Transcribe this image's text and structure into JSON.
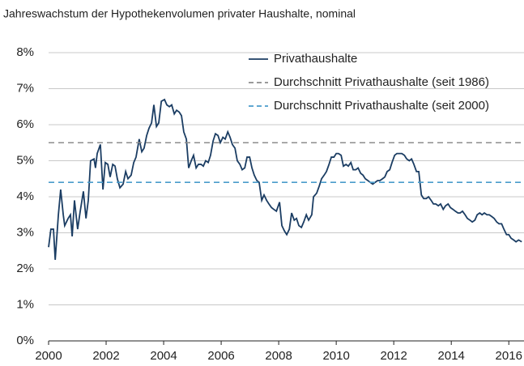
{
  "chart_data": {
    "type": "line",
    "title": "Jahreswachstum der Hypothekenvolumen privater Haushalte, nominal",
    "xlim": [
      2000,
      2016.5
    ],
    "xticks": [
      2000,
      2002,
      2004,
      2006,
      2008,
      2010,
      2012,
      2014,
      2016
    ],
    "ylim": [
      0,
      8
    ],
    "yticks": [
      {
        "value": 0,
        "label": "0%"
      },
      {
        "value": 1,
        "label": "1%"
      },
      {
        "value": 2,
        "label": "2%"
      },
      {
        "value": 3,
        "label": "3%"
      },
      {
        "value": 4,
        "label": "4%"
      },
      {
        "value": 5,
        "label": "5%"
      },
      {
        "value": 6,
        "label": "6%"
      },
      {
        "value": 7,
        "label": "7%"
      },
      {
        "value": 8,
        "label": "8%"
      }
    ],
    "grid": true,
    "legend": "top-right",
    "series": [
      {
        "name": "Privathaushalte",
        "color": "#1b3d63",
        "dash": false,
        "x": [
          2000.0,
          2000.08,
          2000.17,
          2000.23,
          2000.34,
          2000.42,
          2000.51,
          2000.56,
          2000.68,
          2000.76,
          2000.82,
          2000.9,
          2001.01,
          2001.1,
          2001.21,
          2001.3,
          2001.38,
          2001.46,
          2001.58,
          2001.63,
          2001.69,
          2001.8,
          2001.89,
          2001.97,
          2002.06,
          2002.14,
          2002.23,
          2002.31,
          2002.39,
          2002.48,
          2002.59,
          2002.68,
          2002.76,
          2002.87,
          2002.96,
          2003.04,
          2003.15,
          2003.24,
          2003.32,
          2003.41,
          2003.49,
          2003.58,
          2003.66,
          2003.75,
          2003.83,
          2003.92,
          2004.03,
          2004.11,
          2004.2,
          2004.28,
          2004.37,
          2004.45,
          2004.54,
          2004.62,
          2004.7,
          2004.79,
          2004.87,
          2004.96,
          2005.04,
          2005.13,
          2005.21,
          2005.3,
          2005.38,
          2005.46,
          2005.55,
          2005.63,
          2005.72,
          2005.8,
          2005.89,
          2005.97,
          2006.06,
          2006.14,
          2006.23,
          2006.31,
          2006.39,
          2006.48,
          2006.56,
          2006.65,
          2006.73,
          2006.82,
          2006.9,
          2006.99,
          2007.07,
          2007.15,
          2007.24,
          2007.32,
          2007.41,
          2007.49,
          2007.58,
          2007.66,
          2007.75,
          2007.83,
          2007.92,
          2008.03,
          2008.11,
          2008.2,
          2008.28,
          2008.37,
          2008.45,
          2008.54,
          2008.62,
          2008.7,
          2008.79,
          2008.87,
          2008.96,
          2009.04,
          2009.15,
          2009.21,
          2009.32,
          2009.41,
          2009.49,
          2009.58,
          2009.66,
          2009.75,
          2009.83,
          2009.92,
          2010.0,
          2010.08,
          2010.17,
          2010.25,
          2010.34,
          2010.42,
          2010.51,
          2010.59,
          2010.68,
          2010.76,
          2010.85,
          2010.93,
          2011.01,
          2011.1,
          2011.18,
          2011.27,
          2011.35,
          2011.44,
          2011.52,
          2011.61,
          2011.69,
          2011.77,
          2011.86,
          2011.94,
          2012.03,
          2012.11,
          2012.2,
          2012.28,
          2012.37,
          2012.45,
          2012.54,
          2012.62,
          2012.7,
          2012.79,
          2012.87,
          2012.96,
          2013.04,
          2013.13,
          2013.21,
          2013.3,
          2013.38,
          2013.46,
          2013.55,
          2013.63,
          2013.72,
          2013.8,
          2013.89,
          2013.97,
          2014.06,
          2014.14,
          2014.23,
          2014.31,
          2014.39,
          2014.48,
          2014.56,
          2014.65,
          2014.73,
          2014.82,
          2014.9,
          2014.99,
          2015.07,
          2015.15,
          2015.24,
          2015.32,
          2015.41,
          2015.49,
          2015.58,
          2015.66,
          2015.75,
          2015.83,
          2015.92,
          2016.0,
          2016.08,
          2016.17,
          2016.25,
          2016.34,
          2016.45
        ],
        "values": [
          2.6,
          3.1,
          3.1,
          2.25,
          3.5,
          4.2,
          3.5,
          3.2,
          3.4,
          3.5,
          2.9,
          3.9,
          3.1,
          3.6,
          4.15,
          3.4,
          3.9,
          5.0,
          5.05,
          4.8,
          5.2,
          5.45,
          4.2,
          4.95,
          4.9,
          4.55,
          4.9,
          4.85,
          4.5,
          4.25,
          4.35,
          4.7,
          4.5,
          4.6,
          4.95,
          5.1,
          5.6,
          5.25,
          5.35,
          5.7,
          5.9,
          6.05,
          6.55,
          5.95,
          6.05,
          6.65,
          6.7,
          6.55,
          6.5,
          6.55,
          6.3,
          6.4,
          6.35,
          6.25,
          5.8,
          5.6,
          4.8,
          5.0,
          5.15,
          4.8,
          4.9,
          4.9,
          4.85,
          5.0,
          4.95,
          5.15,
          5.55,
          5.75,
          5.7,
          5.5,
          5.65,
          5.6,
          5.8,
          5.65,
          5.45,
          5.35,
          5.0,
          4.9,
          4.75,
          4.8,
          5.1,
          5.1,
          4.8,
          4.6,
          4.45,
          4.4,
          3.9,
          4.05,
          3.9,
          3.8,
          3.7,
          3.65,
          3.6,
          3.85,
          3.2,
          3.05,
          2.95,
          3.1,
          3.55,
          3.35,
          3.4,
          3.2,
          3.15,
          3.3,
          3.5,
          3.35,
          3.5,
          4.0,
          4.1,
          4.3,
          4.5,
          4.6,
          4.7,
          4.9,
          5.1,
          5.1,
          5.2,
          5.2,
          5.15,
          4.85,
          4.9,
          4.85,
          4.95,
          4.75,
          4.75,
          4.8,
          4.65,
          4.6,
          4.5,
          4.45,
          4.4,
          4.35,
          4.4,
          4.45,
          4.45,
          4.5,
          4.55,
          4.7,
          4.75,
          4.95,
          5.15,
          5.2,
          5.2,
          5.2,
          5.15,
          5.05,
          5.0,
          5.05,
          4.9,
          4.7,
          4.7,
          4.05,
          3.95,
          3.95,
          4.0,
          3.9,
          3.8,
          3.8,
          3.75,
          3.8,
          3.65,
          3.75,
          3.8,
          3.7,
          3.65,
          3.6,
          3.55,
          3.55,
          3.6,
          3.5,
          3.4,
          3.35,
          3.3,
          3.35,
          3.5,
          3.55,
          3.5,
          3.55,
          3.5,
          3.5,
          3.45,
          3.4,
          3.3,
          3.25,
          3.25,
          3.1,
          2.95,
          2.95,
          2.85,
          2.8,
          2.75,
          2.8,
          2.75
        ]
      },
      {
        "name": "Durchschnitt Privathaushalte (seit 1986)",
        "color": "#8c8c8c",
        "dash": true,
        "x": [
          2000,
          2016.5
        ],
        "values": [
          5.5,
          5.5
        ]
      },
      {
        "name": "Durchschnitt Privathaushalte (seit 2000)",
        "color": "#4a9ccb",
        "dash": true,
        "x": [
          2000,
          2016.5
        ],
        "values": [
          4.4,
          4.4
        ]
      }
    ]
  }
}
